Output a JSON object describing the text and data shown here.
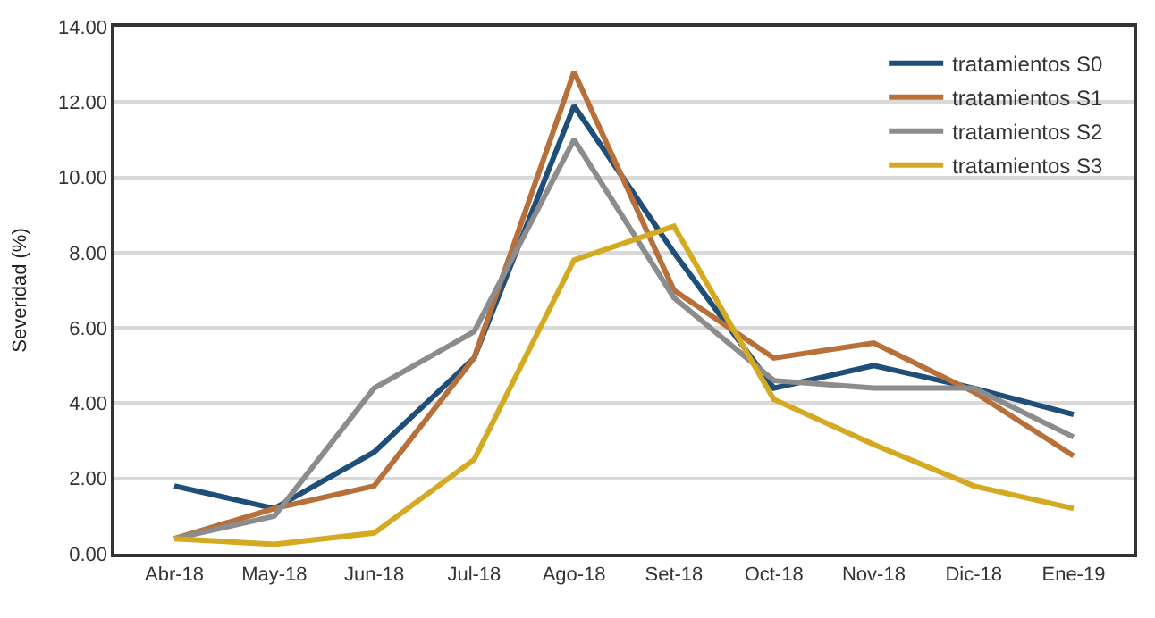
{
  "chart_data": {
    "type": "line",
    "ylabel": "Severidad (%)",
    "categories": [
      "Abr-18",
      "May-18",
      "Jun-18",
      "Jul-18",
      "Ago-18",
      "Set-18",
      "Oct-18",
      "Nov-18",
      "Dic-18",
      "Ene-19"
    ],
    "series": [
      {
        "name": "tratamientos S0",
        "color": "#1f4e79",
        "values": [
          1.8,
          1.2,
          2.7,
          5.2,
          11.9,
          8.0,
          4.4,
          5.0,
          4.4,
          3.7
        ]
      },
      {
        "name": "tratamientos S1",
        "color": "#b8703a",
        "values": [
          0.4,
          1.2,
          1.8,
          5.2,
          12.8,
          7.0,
          5.2,
          5.6,
          4.3,
          2.6
        ]
      },
      {
        "name": "tratamientos S2",
        "color": "#8c8c8c",
        "values": [
          0.4,
          1.0,
          4.4,
          5.9,
          11.0,
          6.8,
          4.6,
          4.4,
          4.4,
          3.1
        ]
      },
      {
        "name": "tratamientos S3",
        "color": "#d4aa22",
        "values": [
          0.4,
          0.25,
          0.55,
          2.5,
          7.8,
          8.7,
          4.1,
          2.9,
          1.8,
          1.2
        ]
      }
    ],
    "ylim": [
      0,
      14
    ],
    "yticks": [
      {
        "value": 0,
        "label": "0.00"
      },
      {
        "value": 2,
        "label": "2.00"
      },
      {
        "value": 4,
        "label": "4.00"
      },
      {
        "value": 6,
        "label": "6.00"
      },
      {
        "value": 8,
        "label": "8.00"
      },
      {
        "value": 10,
        "label": "10.00"
      },
      {
        "value": 12,
        "label": "12.00"
      },
      {
        "value": 14,
        "label": "14.00"
      }
    ],
    "grid": "y",
    "legend": "top right",
    "marker": "none",
    "line_style": "solid"
  }
}
